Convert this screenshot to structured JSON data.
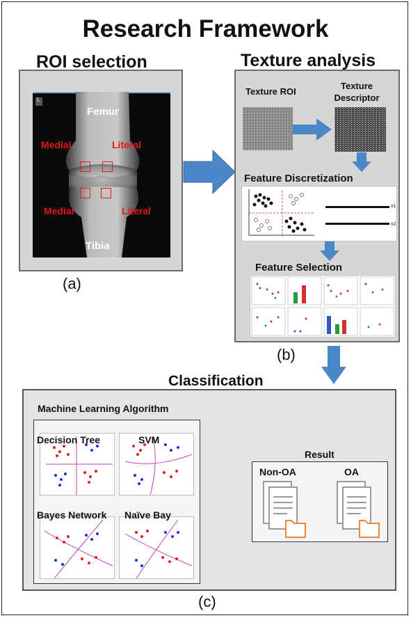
{
  "title": "Research Framework",
  "roi": {
    "heading": "ROI selection",
    "femur": "Femur",
    "tibia": "Tibia",
    "medial_top": "Medial",
    "literal_top": "Literal",
    "medial_bottom": "Medial",
    "literal_bottom": "Literal",
    "corner_mark": "L",
    "caption": "(a)"
  },
  "texture": {
    "heading": "Texture analysis",
    "roi_label": "Texture ROI",
    "descriptor_label_1": "Texture",
    "descriptor_label_2": "Descriptor",
    "discretization": "Feature Discretization",
    "selection": "Feature Selection",
    "caption": "(b)",
    "x1": "x1",
    "x2": "x2"
  },
  "classification": {
    "heading": "Classification",
    "ml_heading": "Machine Learning Algorithm",
    "algorithms": [
      "Decision Tree",
      "SVM",
      "Bayes Network",
      "Naïve Bay"
    ],
    "result_heading": "Result",
    "results": [
      "Non-OA",
      "OA"
    ],
    "caption": "(c)"
  },
  "colors": {
    "arrow": "#4a86c8",
    "red_label": "#e21818",
    "doc_outline": "#9a9a9a",
    "folder": "#f0883a",
    "panel_bg": "#d6d6d6"
  }
}
